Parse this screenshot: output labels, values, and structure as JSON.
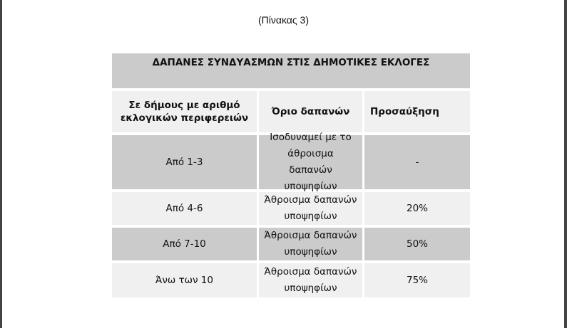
{
  "caption": "(Πίνακας 3)",
  "table": {
    "title": "ΔΑΠΑΝΕΣ ΣΥΝΔΥΑΣΜΩΝ ΣΤΙΣ ΔΗΜΟΤΙΚΕΣ ΕΚΛΟΓΕΣ",
    "headers": [
      "Σε δήμους με αριθμό εκλογικών περιφερειών",
      "Όριο δαπανών",
      "Προσαύξηση"
    ],
    "rows": [
      [
        "Από 1-3",
        "Ισοδυναμεί με το άθροισμα δαπανών υποψηφίων",
        "-"
      ],
      [
        "Από 4-6",
        "Άθροισμα δαπανών υποψηφίων",
        "20%"
      ],
      [
        "Από 7-10",
        "Άθροισμα δαπανών υποψηφίων",
        "50%"
      ],
      [
        "Άνω των 10",
        "Άθροισμα δαπανών υποψηφίων",
        "75%"
      ]
    ]
  }
}
